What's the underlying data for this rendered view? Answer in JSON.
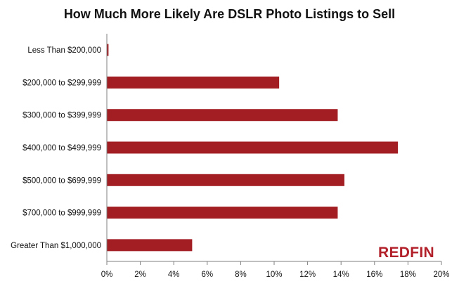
{
  "chart_data": {
    "type": "bar",
    "orientation": "horizontal",
    "title": "How Much More Likely Are DSLR Photo Listings to Sell",
    "categories": [
      "Less Than $200,000",
      "$200,000 to $299,999",
      "$300,000 to $399,999",
      "$400,000 to $499,999",
      "$500,000 to $699,999",
      "$700,000 to $999,999",
      "Greater Than $1,000,000"
    ],
    "values": [
      0.1,
      10.3,
      13.8,
      17.4,
      14.2,
      13.8,
      5.1
    ],
    "xlim": [
      0,
      20
    ],
    "xticks": [
      0,
      2,
      4,
      6,
      8,
      10,
      12,
      14,
      16,
      18,
      20
    ],
    "tick_labels": [
      "0%",
      "2%",
      "4%",
      "6%",
      "8%",
      "10%",
      "12%",
      "14%",
      "16%",
      "18%",
      "20%"
    ],
    "bar_color": "#a21e23",
    "grid": false,
    "legend": "none"
  },
  "logo": {
    "text": "REDFIN",
    "color": "#b2202a"
  }
}
